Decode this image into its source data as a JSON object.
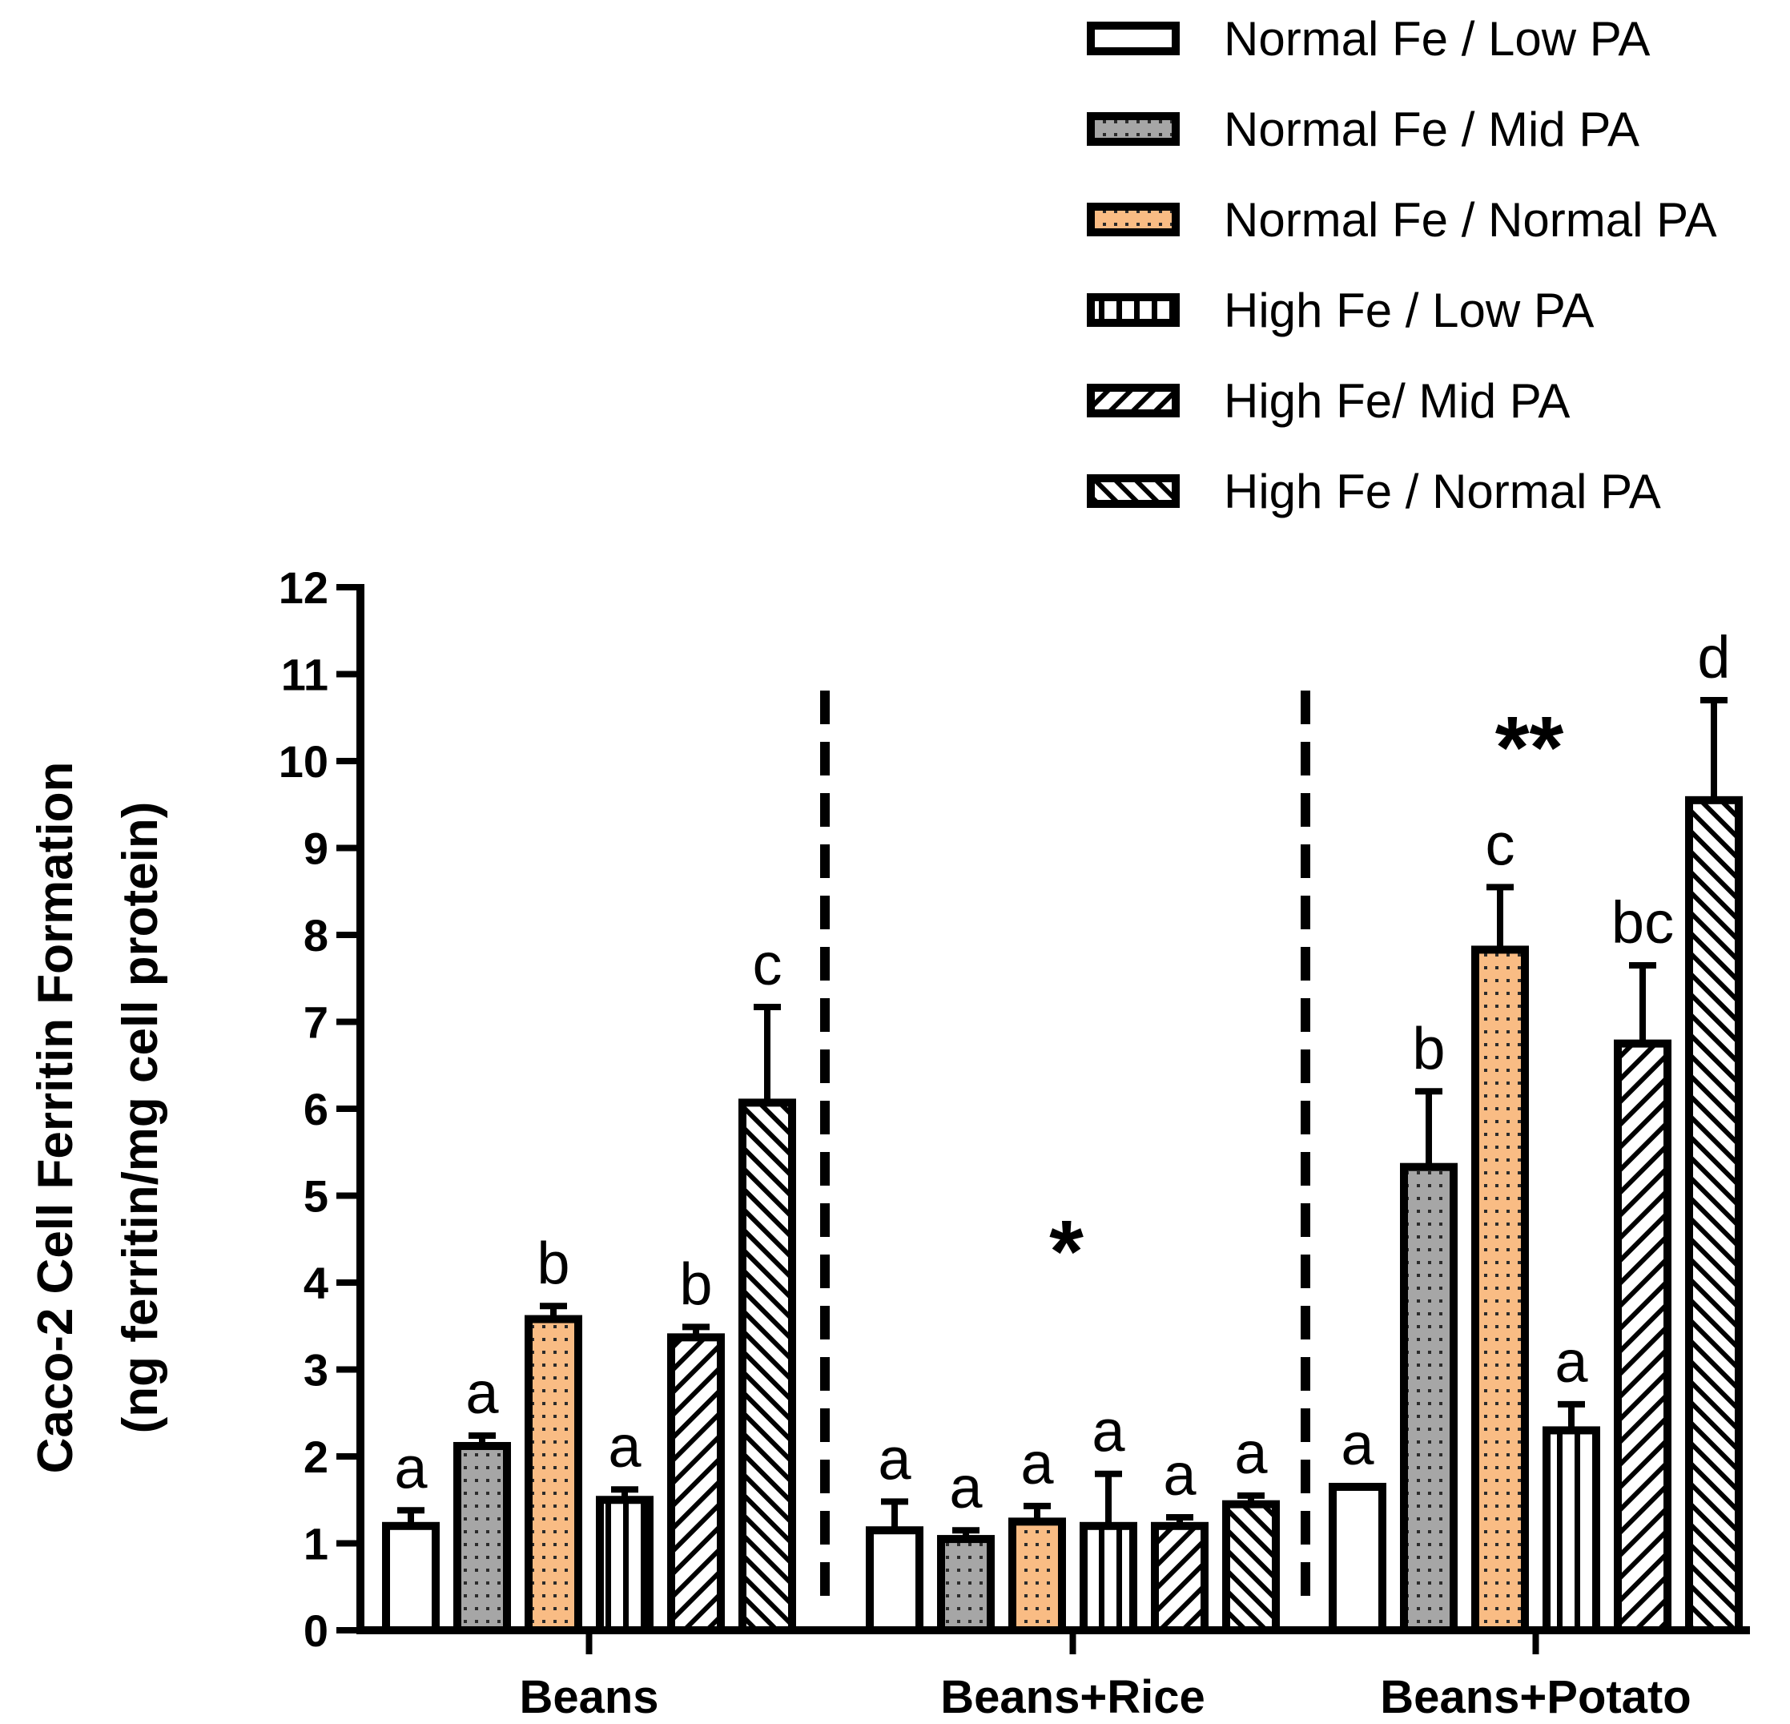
{
  "chart_data": {
    "type": "bar",
    "title": "",
    "xlabel": "",
    "ylabel": "Caco-2 Cell Ferritin  Formation",
    "ylabel_line2": "(ng ferritin/mg cell protein)",
    "ylim": [
      0,
      12
    ],
    "yticks": [
      "0",
      "1",
      "2",
      "3",
      "4",
      "5",
      "6",
      "7",
      "8",
      "9",
      "10",
      "11",
      "12"
    ],
    "categories": [
      "Beans",
      "Beans+Rice",
      "Beans+Potato"
    ],
    "legend_position": "top-right",
    "series": [
      {
        "name": "Normal Fe / Low PA",
        "pattern": "plain",
        "color": "#ffffff",
        "values": [
          1.2,
          1.15,
          1.65
        ],
        "errors": [
          0.18,
          0.33,
          0.0
        ],
        "letters": [
          "a",
          "a",
          "a"
        ]
      },
      {
        "name": "Normal Fe / Mid PA",
        "pattern": "dots",
        "color": "#a6a6a6",
        "values": [
          2.12,
          1.05,
          5.33
        ],
        "errors": [
          0.12,
          0.1,
          0.87
        ],
        "letters": [
          "a",
          "a",
          "b"
        ]
      },
      {
        "name": "Normal Fe / Normal PA",
        "pattern": "dots",
        "color": "#f9bc84",
        "values": [
          3.58,
          1.25,
          7.83
        ],
        "errors": [
          0.15,
          0.18,
          0.72
        ],
        "letters": [
          "b",
          "a",
          "c"
        ]
      },
      {
        "name": "High Fe / Low PA",
        "pattern": "vertical-stripes",
        "color": "#ffffff",
        "values": [
          1.5,
          1.2,
          2.3
        ],
        "errors": [
          0.12,
          0.6,
          0.3
        ],
        "letters": [
          "a",
          "a",
          "a"
        ]
      },
      {
        "name": "High Fe/ Mid PA",
        "pattern": "diagonal-up",
        "color": "#ffffff",
        "values": [
          3.37,
          1.2,
          6.75
        ],
        "errors": [
          0.12,
          0.1,
          0.9
        ],
        "letters": [
          "b",
          "a",
          "bc"
        ]
      },
      {
        "name": "High Fe / Normal PA",
        "pattern": "diagonal-down",
        "color": "#ffffff",
        "values": [
          6.07,
          1.45,
          9.55
        ],
        "errors": [
          1.1,
          0.1,
          1.15
        ],
        "letters": [
          "c",
          "a",
          "d"
        ]
      }
    ],
    "annotations": [
      {
        "text": "*",
        "category": "Beans+Rice",
        "y": 4.7
      },
      {
        "text": "**",
        "category": "Beans+Potato",
        "y": 10.5
      }
    ],
    "dividers": [
      "between Beans and Beans+Rice",
      "between Beans+Rice and Beans+Potato"
    ]
  }
}
